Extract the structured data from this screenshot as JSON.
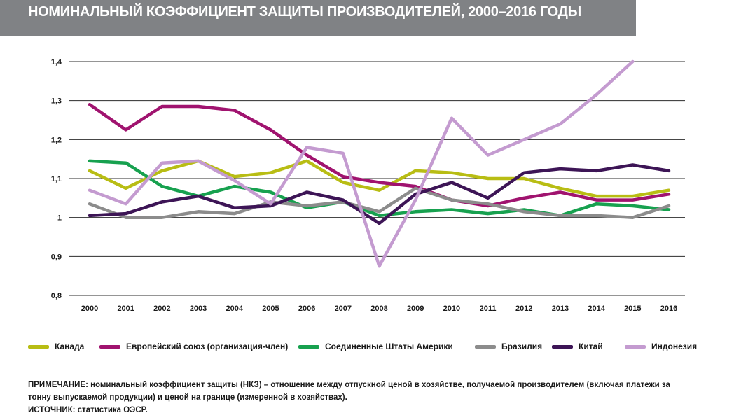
{
  "header": {
    "title": "НОМИНАЛЬНЫЙ КОЭФФИЦИЕНТ ЗАЩИТЫ ПРОИЗВОДИТЕЛЕЙ, 2000–2016 ГОДЫ"
  },
  "chart_data": {
    "type": "line",
    "x": [
      "2000",
      "2001",
      "2002",
      "2003",
      "2004",
      "2005",
      "2006",
      "2007",
      "2008",
      "2009",
      "2010",
      "2011",
      "2012",
      "2013",
      "2014",
      "2015",
      "2016"
    ],
    "y_ticks": [
      "0,8",
      "0,9",
      "1",
      "1,1",
      "1,2",
      "1,3",
      "1,4"
    ],
    "ylim": [
      0.8,
      1.4
    ],
    "grid": true,
    "legend_position": "bottom",
    "series": [
      {
        "name": "Канада",
        "color": "#b8bd14",
        "values": [
          1.12,
          1.075,
          1.12,
          1.145,
          1.105,
          1.115,
          1.145,
          1.09,
          1.07,
          1.12,
          1.115,
          1.1,
          1.1,
          1.075,
          1.055,
          1.055,
          1.07
        ]
      },
      {
        "name": "Европейский союз (организация-член)",
        "color": "#a0136f",
        "values": [
          1.29,
          1.225,
          1.285,
          1.285,
          1.275,
          1.225,
          1.16,
          1.105,
          1.09,
          1.08,
          1.045,
          1.03,
          1.05,
          1.065,
          1.045,
          1.045,
          1.06
        ]
      },
      {
        "name": "Соединенные Штаты Америки",
        "color": "#17a14f",
        "values": [
          1.145,
          1.14,
          1.08,
          1.055,
          1.08,
          1.065,
          1.025,
          1.04,
          1.005,
          1.015,
          1.02,
          1.01,
          1.02,
          1.005,
          1.035,
          1.03,
          1.02
        ]
      },
      {
        "name": "Бразилия",
        "color": "#8c8c8c",
        "values": [
          1.035,
          1.0,
          1.0,
          1.015,
          1.01,
          1.04,
          1.03,
          1.04,
          1.015,
          1.075,
          1.045,
          1.035,
          1.015,
          1.005,
          1.005,
          1.0,
          1.03
        ]
      },
      {
        "name": "Китай",
        "color": "#3d1556",
        "values": [
          1.005,
          1.01,
          1.04,
          1.055,
          1.025,
          1.03,
          1.065,
          1.045,
          0.985,
          1.06,
          1.09,
          1.05,
          1.115,
          1.125,
          1.12,
          1.135,
          1.12
        ]
      },
      {
        "name": "Индонезия",
        "color": "#c49bd0",
        "values": [
          1.07,
          1.035,
          1.14,
          1.145,
          1.095,
          1.035,
          1.18,
          1.165,
          0.875,
          1.045,
          1.255,
          1.16,
          1.2,
          1.24,
          1.315,
          1.4,
          null
        ]
      }
    ]
  },
  "note": {
    "line1": "ПРИМЕЧАНИЕ: номинальный коэффициент защиты (НКЗ) – отношение между отпускной ценой в хозяйстве, получаемой производителем (включая платежи за",
    "line2": "тонну выпускаемой продукции) и ценой на границе (измеренной в хозяйствах).",
    "source": "ИСТОЧНИК: статистика ОЭСР."
  }
}
